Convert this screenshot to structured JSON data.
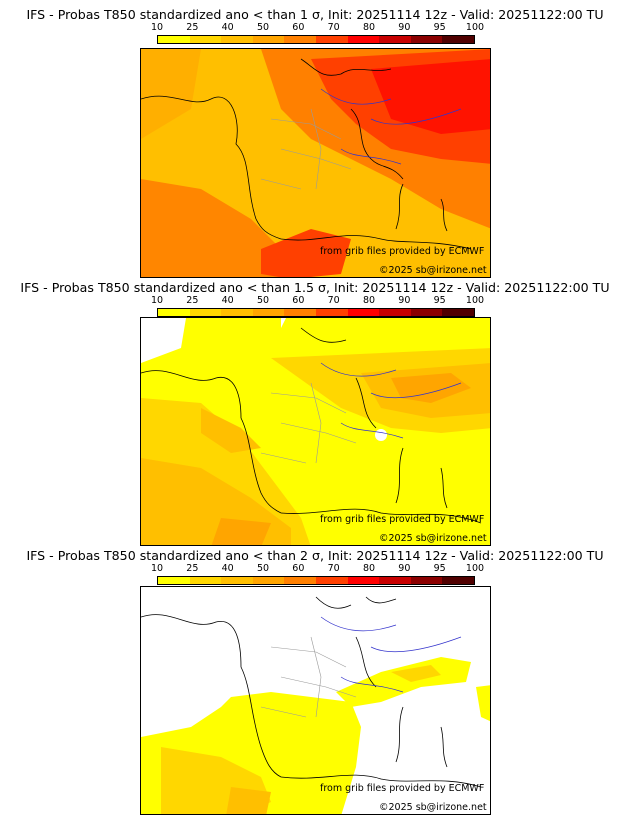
{
  "panels": [
    {
      "title": "IFS - Probas T850  standardized ano < than 1 σ, Init: 20251114 12z - Valid: 20251122:00 TU",
      "threshold": "1 σ"
    },
    {
      "title": "IFS - Probas T850  standardized ano < than 1.5 σ, Init: 20251114 12z - Valid: 20251122:00 TU",
      "threshold": "1.5 σ"
    },
    {
      "title": "IFS - Probas T850  standardized ano < than 2 σ, Init: 20251114 12z - Valid: 20251122:00 TU",
      "threshold": "2 σ"
    }
  ],
  "legend": {
    "ticks": [
      "10",
      "25",
      "40",
      "50",
      "60",
      "70",
      "80",
      "90",
      "95",
      "100"
    ],
    "colors": [
      "#ffff00",
      "#ffd700",
      "#ffbf00",
      "#ffa500",
      "#ff8000",
      "#ff4000",
      "#ff0000",
      "#c80000",
      "#8b0000",
      "#500000"
    ]
  },
  "credits": {
    "source": "from grib files provided by ECMWF",
    "copyright": "©2025 sb@irizone.net"
  },
  "map_colors": {
    "background": "#ffffff",
    "borders": "#000000",
    "regions": "#9a9a9a",
    "rivers": "#3333cc"
  }
}
